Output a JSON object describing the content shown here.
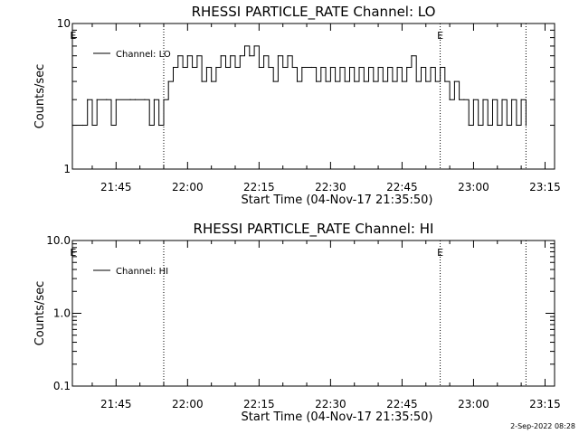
{
  "footer_timestamp": "2-Sep-2022 08:28",
  "colors": {
    "background": "#ffffff",
    "foreground": "#000000"
  },
  "chart_data": [
    {
      "type": "line",
      "title": "RHESSI PARTICLE_RATE Channel: LO",
      "xlabel": "Start Time (04-Nov-17 21:35:50)",
      "ylabel": "Counts/sec",
      "yscale": "log",
      "ylim": [
        1,
        10
      ],
      "ytick_labels": [
        "1",
        "10"
      ],
      "xlim": [
        "21:35:50",
        "23:17:00"
      ],
      "xtick_labels": [
        "21:45",
        "22:00",
        "22:15",
        "22:30",
        "22:45",
        "23:00",
        "23:15"
      ],
      "grid": false,
      "legend_position": "top-left",
      "vlines": [
        "21:55",
        "22:53",
        "23:11"
      ],
      "flags": [
        {
          "text": "E",
          "x": "21:36"
        },
        {
          "text": "E",
          "x": "22:53"
        }
      ],
      "series": [
        {
          "name": "Channel: LO",
          "line_style": "solid",
          "points": [
            [
              "21:36",
              2
            ],
            [
              "21:38",
              2
            ],
            [
              "21:39",
              3
            ],
            [
              "21:40",
              2
            ],
            [
              "21:41",
              3
            ],
            [
              "21:43",
              3
            ],
            [
              "21:44",
              2
            ],
            [
              "21:45",
              3
            ],
            [
              "21:48",
              3
            ],
            [
              "21:49",
              3
            ],
            [
              "21:51",
              3
            ],
            [
              "21:52",
              2
            ],
            [
              "21:53",
              3
            ],
            [
              "21:54",
              2
            ],
            [
              "21:55",
              3
            ],
            [
              "21:56",
              4
            ],
            [
              "21:57",
              5
            ],
            [
              "21:58",
              6
            ],
            [
              "21:59",
              5
            ],
            [
              "22:00",
              6
            ],
            [
              "22:01",
              5
            ],
            [
              "22:02",
              6
            ],
            [
              "22:03",
              4
            ],
            [
              "22:04",
              5
            ],
            [
              "22:05",
              4
            ],
            [
              "22:06",
              5
            ],
            [
              "22:07",
              6
            ],
            [
              "22:08",
              5
            ],
            [
              "22:09",
              6
            ],
            [
              "22:10",
              5
            ],
            [
              "22:11",
              6
            ],
            [
              "22:12",
              7
            ],
            [
              "22:13",
              6
            ],
            [
              "22:14",
              7
            ],
            [
              "22:15",
              5
            ],
            [
              "22:16",
              6
            ],
            [
              "22:17",
              5
            ],
            [
              "22:18",
              4
            ],
            [
              "22:19",
              6
            ],
            [
              "22:20",
              5
            ],
            [
              "22:21",
              6
            ],
            [
              "22:22",
              5
            ],
            [
              "22:23",
              4
            ],
            [
              "22:24",
              5
            ],
            [
              "22:26",
              5
            ],
            [
              "22:27",
              4
            ],
            [
              "22:28",
              5
            ],
            [
              "22:29",
              4
            ],
            [
              "22:30",
              5
            ],
            [
              "22:31",
              4
            ],
            [
              "22:32",
              5
            ],
            [
              "22:33",
              4
            ],
            [
              "22:34",
              5
            ],
            [
              "22:35",
              4
            ],
            [
              "22:36",
              5
            ],
            [
              "22:37",
              4
            ],
            [
              "22:38",
              5
            ],
            [
              "22:39",
              4
            ],
            [
              "22:40",
              5
            ],
            [
              "22:41",
              4
            ],
            [
              "22:42",
              5
            ],
            [
              "22:43",
              4
            ],
            [
              "22:44",
              5
            ],
            [
              "22:45",
              4
            ],
            [
              "22:46",
              5
            ],
            [
              "22:47",
              6
            ],
            [
              "22:48",
              4
            ],
            [
              "22:49",
              5
            ],
            [
              "22:50",
              4
            ],
            [
              "22:51",
              5
            ],
            [
              "22:52",
              4
            ],
            [
              "22:53",
              5
            ],
            [
              "22:54",
              4
            ],
            [
              "22:55",
              3
            ],
            [
              "22:56",
              4
            ],
            [
              "22:57",
              3
            ],
            [
              "22:58",
              3
            ],
            [
              "22:59",
              2
            ],
            [
              "23:00",
              3
            ],
            [
              "23:01",
              2
            ],
            [
              "23:02",
              3
            ],
            [
              "23:03",
              2
            ],
            [
              "23:04",
              3
            ],
            [
              "23:05",
              2
            ],
            [
              "23:06",
              3
            ],
            [
              "23:07",
              2
            ],
            [
              "23:08",
              3
            ],
            [
              "23:09",
              2
            ],
            [
              "23:10",
              3
            ],
            [
              "23:11",
              2
            ]
          ]
        }
      ]
    },
    {
      "type": "line",
      "title": "RHESSI PARTICLE_RATE Channel: HI",
      "xlabel": "Start Time (04-Nov-17 21:35:50)",
      "ylabel": "Counts/sec",
      "yscale": "log",
      "ylim": [
        0.1,
        10
      ],
      "ytick_labels": [
        "0.1",
        "1.0",
        "10.0"
      ],
      "xlim": [
        "21:35:50",
        "23:17:00"
      ],
      "xtick_labels": [
        "21:45",
        "22:00",
        "22:15",
        "22:30",
        "22:45",
        "23:00",
        "23:15"
      ],
      "grid": false,
      "legend_position": "top-left",
      "vlines": [
        "21:55",
        "22:53",
        "23:11"
      ],
      "flags": [
        {
          "text": "E",
          "x": "21:36"
        },
        {
          "text": "E",
          "x": "22:53"
        }
      ],
      "series": [
        {
          "name": "Channel: HI",
          "line_style": "solid",
          "points": []
        }
      ]
    }
  ]
}
